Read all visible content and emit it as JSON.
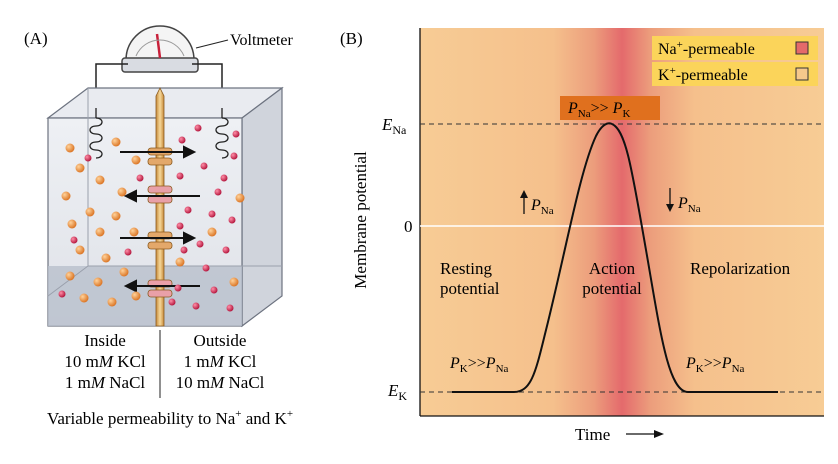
{
  "panel_a": {
    "label": "(A)",
    "voltmeter_label": "Voltmeter",
    "inside_title": "Inside",
    "inside_line1_pre": "10 m",
    "inside_line1_unit": "M",
    "inside_line1_post": " KCl",
    "inside_line2_pre": "1 m",
    "inside_line2_unit": "M",
    "inside_line2_post": " NaCl",
    "outside_title": "Outside",
    "outside_line1_pre": "1 m",
    "outside_line1_unit": "M",
    "outside_line1_post": " KCl",
    "outside_line2_pre": "10 m",
    "outside_line2_unit": "M",
    "outside_line2_post": " NaCl",
    "caption_pre": "Variable permeability to Na",
    "caption_sup1": "+",
    "caption_mid": " and K",
    "caption_sup2": "+"
  },
  "panel_b": {
    "label": "(B)",
    "y_axis_label": "Membrane potential",
    "x_axis_label": "Time",
    "ena_main": "E",
    "ena_sub": "Na",
    "zero_label": "0",
    "ek_main": "E",
    "ek_sub": "K",
    "legend_na_pre": "Na",
    "legend_na_sup": "+",
    "legend_na_post": "-permeable",
    "legend_k_pre": "K",
    "legend_k_sup": "+",
    "legend_k_post": "-permeable",
    "peak_p1": "P",
    "peak_sub1": "Na",
    "peak_mid": ">> ",
    "peak_p2": "P",
    "peak_sub2": "K",
    "rising_p": "P",
    "rising_sub": "Na",
    "falling_p": "P",
    "falling_sub": "Na",
    "resting_line1": "Resting",
    "resting_line2": "potential",
    "action_line1": "Action",
    "action_line2": "potential",
    "repol_label": "Repolarization",
    "left_ratio_p1": "P",
    "left_ratio_sub1": "K",
    "left_ratio_mid": ">>",
    "left_ratio_p2": "P",
    "left_ratio_sub2": "Na",
    "right_ratio_p1": "P",
    "right_ratio_sub1": "K",
    "right_ratio_mid": ">>",
    "right_ratio_p2": "P",
    "right_ratio_sub2": "Na"
  },
  "colors": {
    "k_permeable": "#f6c98c",
    "na_permeable": "#e46a6a",
    "peak_box": "#e0701e",
    "k_ion": "#e07f2a",
    "na_ion": "#c8204a"
  }
}
